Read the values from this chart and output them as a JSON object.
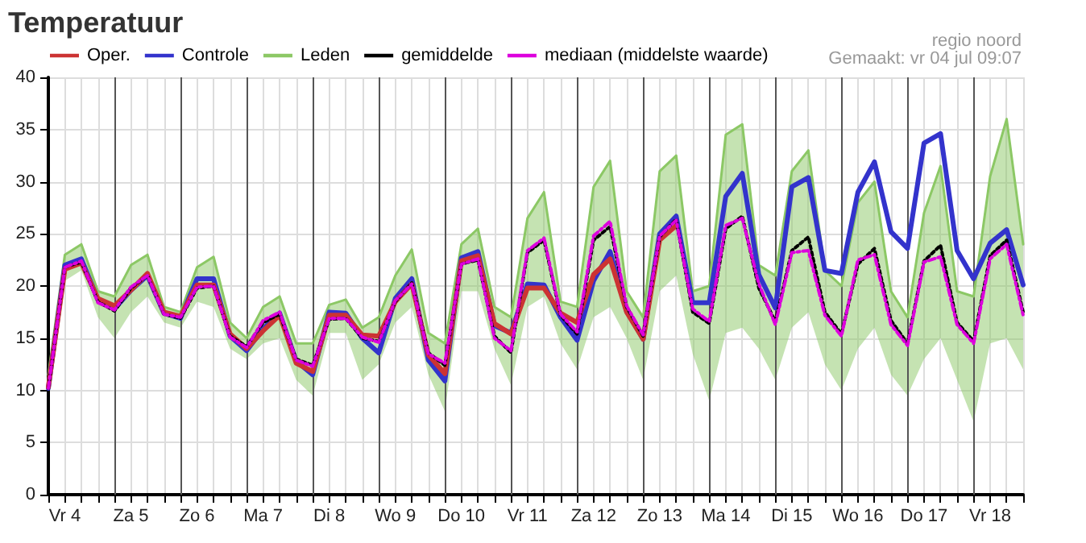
{
  "chart_data": {
    "type": "line",
    "title": "Temperatuur",
    "annotations": [
      "regio noord",
      "Gemaakt: vr 04 jul 09:07"
    ],
    "categories": [
      null,
      "Vr 4",
      null,
      null,
      null,
      "Za 5",
      null,
      null,
      null,
      "Zo 6",
      null,
      null,
      null,
      "Ma 7",
      null,
      null,
      null,
      "Di 8",
      null,
      null,
      null,
      "Wo 9",
      null,
      null,
      null,
      "Do 10",
      null,
      null,
      null,
      "Vr 11",
      null,
      null,
      null,
      "Za 12",
      null,
      null,
      null,
      "Zo 13",
      null,
      null,
      null,
      "Ma 14",
      null,
      null,
      null,
      "Di 15",
      null,
      null,
      null,
      "Wo 16",
      null,
      null,
      null,
      "Do 17",
      null,
      null,
      null,
      "Vr 18",
      null,
      null
    ],
    "ylim": [
      0,
      40
    ],
    "yticks": [
      0,
      5,
      10,
      15,
      20,
      25,
      30,
      35,
      40
    ],
    "grid": true,
    "legend": "top",
    "marker": "none",
    "series": [
      {
        "name": "Oper.",
        "color": "#cc3333",
        "line_style": "solid",
        "values": [
          10.3,
          21.6,
          22.2,
          18.8,
          18.1,
          19.6,
          21.2,
          17.5,
          17.1,
          20.1,
          20.1,
          15.4,
          14.0,
          15.7,
          17.2,
          12.6,
          11.8,
          17.2,
          17.2,
          15.3,
          15.2,
          18.5,
          20.2,
          13.4,
          11.6,
          22.4,
          22.9,
          16.4,
          15.4,
          19.8,
          19.8,
          17.4,
          16.5,
          21.1,
          22.6,
          17.5,
          14.9,
          24.4,
          25.8,
          null,
          null,
          null,
          null,
          null,
          null,
          null,
          null,
          null,
          null,
          null,
          null,
          null,
          null,
          null,
          null,
          null,
          null,
          null,
          null,
          null
        ]
      },
      {
        "name": "Controle",
        "color": "#3333cc",
        "line_style": "solid",
        "values": [
          10.2,
          22.0,
          22.6,
          18.7,
          17.8,
          19.6,
          21.0,
          17.4,
          16.9,
          20.7,
          20.7,
          15.2,
          13.8,
          15.9,
          17.4,
          12.8,
          11.5,
          17.5,
          17.4,
          15.0,
          13.6,
          18.8,
          20.7,
          12.9,
          10.9,
          22.7,
          23.3,
          16.2,
          15.5,
          20.2,
          20.1,
          17.0,
          14.8,
          20.5,
          23.3,
          17.6,
          14.9,
          25.0,
          26.7,
          18.4,
          18.4,
          28.6,
          30.8,
          21.1,
          17.9,
          29.5,
          30.4,
          21.5,
          21.2,
          29.0,
          31.9,
          25.2,
          23.6,
          33.7,
          34.6,
          23.4,
          20.7,
          24.1,
          25.4,
          20.1
        ]
      },
      {
        "name": "Leden",
        "color": "#8cc865",
        "line_style": "solid",
        "values": [
          11.5,
          23,
          24,
          19.5,
          19,
          22,
          23,
          18,
          17.5,
          21.8,
          22.8,
          16.5,
          15,
          18,
          19,
          14.5,
          14.5,
          18.2,
          18.7,
          16,
          17,
          21,
          23.5,
          15.5,
          14.5,
          24,
          25.5,
          18,
          17,
          26.5,
          29,
          18.5,
          18,
          29.5,
          32,
          19.5,
          17,
          31,
          32.5,
          19.5,
          20,
          34.5,
          35.5,
          22,
          21,
          31,
          33,
          21.5,
          20,
          28,
          30,
          19.5,
          17,
          27,
          31.5,
          19.5,
          19,
          30.5,
          36,
          24
        ],
        "lower": [
          10,
          20.5,
          21.5,
          17,
          15,
          17.5,
          19,
          16.5,
          16,
          18.5,
          18,
          14,
          13,
          14.5,
          15,
          11,
          9.5,
          15.5,
          15.5,
          11,
          12.5,
          16.5,
          18,
          11.5,
          8,
          19.5,
          19.5,
          14,
          10.5,
          18,
          19,
          14.5,
          12,
          17,
          18,
          15,
          11,
          19.5,
          21,
          13.5,
          9,
          15.5,
          16,
          14,
          11,
          16,
          17.5,
          12.5,
          10,
          14,
          16,
          11.5,
          9.5,
          13,
          15,
          11,
          7,
          14.5,
          15,
          12
        ],
        "upper": [
          11.5,
          23,
          24,
          19.5,
          19,
          22,
          23,
          18,
          17.5,
          21.8,
          22.8,
          16.5,
          15,
          18,
          19,
          14.5,
          14.5,
          18.2,
          18.7,
          16,
          17,
          21,
          23.5,
          15.5,
          14.5,
          24,
          25.5,
          18,
          17,
          26.5,
          29,
          18.5,
          18,
          29.5,
          32,
          19.5,
          17,
          31,
          32.5,
          19.5,
          20,
          34.5,
          35.5,
          22,
          21,
          31,
          33,
          21.5,
          20,
          28,
          30,
          19.5,
          17,
          27,
          31.5,
          19.5,
          19,
          30.5,
          36,
          24
        ]
      },
      {
        "name": "gemiddelde",
        "color": "#000000",
        "line_style": "dotted",
        "values": [
          10.2,
          21.8,
          22.3,
          18.5,
          17.6,
          19.8,
          21.0,
          17.3,
          16.9,
          19.8,
          20.0,
          15.2,
          14.2,
          16.5,
          17.3,
          13.0,
          12.4,
          16.8,
          16.9,
          15.0,
          14.7,
          18.5,
          20.3,
          13.6,
          12.4,
          22.1,
          22.5,
          15.2,
          13.6,
          23.2,
          24.4,
          17.2,
          15.4,
          24.4,
          25.7,
          18.0,
          15.2,
          24.7,
          26.4,
          17.5,
          16.4,
          25.5,
          26.7,
          19.8,
          16.6,
          23.4,
          24.7,
          17.5,
          15.4,
          22.1,
          23.6,
          16.7,
          14.5,
          22.4,
          23.9,
          16.5,
          14.7,
          22.9,
          24.4,
          17.5
        ]
      },
      {
        "name": "mediaan (middelste waarde)",
        "color": "#dd00dd",
        "line_style": "dashed",
        "values": [
          10.2,
          21.8,
          22.4,
          18.4,
          17.7,
          19.9,
          21.0,
          17.3,
          17.0,
          19.9,
          20.0,
          15.1,
          14.1,
          16.7,
          17.5,
          12.9,
          12.3,
          16.9,
          16.9,
          15.1,
          14.6,
          18.6,
          20.2,
          13.5,
          12.6,
          22.1,
          22.6,
          15.0,
          13.8,
          23.4,
          24.6,
          17.3,
          15.6,
          24.8,
          26.2,
          18.1,
          15.3,
          24.8,
          26.3,
          17.8,
          16.6,
          25.8,
          26.5,
          20.2,
          16.3,
          23.2,
          23.4,
          17.2,
          15.2,
          22.5,
          23.0,
          16.3,
          14.3,
          22.3,
          22.8,
          16.3,
          14.5,
          22.6,
          24.0,
          17.2
        ]
      }
    ]
  }
}
